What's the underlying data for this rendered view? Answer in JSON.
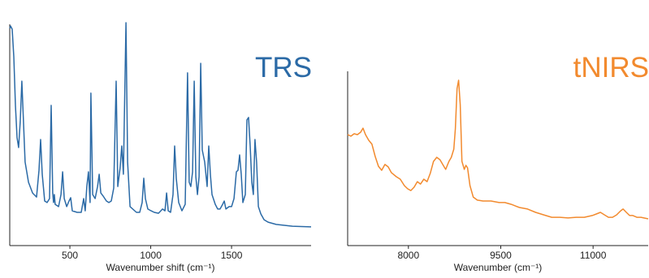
{
  "chart_data": [
    {
      "type": "line",
      "title": "TRS",
      "title_color": "#2b6aa6",
      "color": "#2b6aa6",
      "xlabel": "Wavenumber shift (cm⁻¹)",
      "xlim": [
        128,
        1992
      ],
      "xticks": [
        500,
        1000,
        1500
      ],
      "ylim": [
        0,
        100
      ],
      "x": [
        128,
        133,
        143,
        153,
        163,
        173,
        183,
        193,
        203,
        213,
        223,
        244,
        269,
        294,
        309,
        319,
        329,
        344,
        359,
        374,
        384,
        394,
        399,
        404,
        409,
        430,
        445,
        455,
        465,
        480,
        495,
        505,
        515,
        545,
        570,
        585,
        595,
        605,
        615,
        625,
        630,
        641,
        656,
        671,
        681,
        691,
        706,
        726,
        741,
        756,
        771,
        786,
        796,
        811,
        821,
        831,
        847,
        857,
        872,
        912,
        932,
        947,
        957,
        967,
        982,
        1002,
        1022,
        1048,
        1073,
        1088,
        1098,
        1108,
        1123,
        1138,
        1148,
        1158,
        1173,
        1193,
        1213,
        1228,
        1238,
        1248,
        1259,
        1269,
        1279,
        1289,
        1299,
        1309,
        1319,
        1334,
        1349,
        1359,
        1369,
        1379,
        1399,
        1414,
        1429,
        1445,
        1455,
        1465,
        1485,
        1500,
        1515,
        1530,
        1540,
        1550,
        1560,
        1570,
        1585,
        1595,
        1605,
        1615,
        1625,
        1635,
        1645,
        1655,
        1666,
        1681,
        1701,
        1726,
        1776,
        1877,
        1992
      ],
      "values": [
        97.5,
        98.5,
        97.1,
        84.7,
        62.9,
        48.4,
        44,
        55.6,
        73.8,
        55.6,
        37.5,
        28.4,
        23.6,
        21.8,
        33.8,
        47.6,
        32,
        20,
        19.3,
        21.1,
        62.9,
        23.6,
        19.3,
        22.9,
        18.5,
        17.5,
        22.9,
        33.1,
        21.1,
        17.5,
        20,
        21.5,
        15.6,
        14.9,
        14.9,
        21.1,
        15.6,
        26.5,
        33.1,
        19.3,
        68.4,
        22.9,
        21.1,
        26.5,
        32,
        23.6,
        22.2,
        20,
        19.3,
        20,
        25.8,
        73.8,
        26.5,
        34.9,
        44.7,
        32,
        100,
        37.5,
        17.5,
        14.9,
        14.9,
        19.3,
        30.2,
        21.1,
        16.4,
        15.6,
        14.9,
        14.5,
        16.4,
        15.6,
        23.6,
        15.6,
        14.9,
        22.9,
        44.7,
        30.2,
        19.3,
        15.6,
        18.5,
        77.5,
        28.4,
        26.5,
        33.1,
        73.8,
        30.9,
        22.9,
        30.9,
        81.8,
        42.9,
        37.5,
        26.5,
        44.7,
        32,
        22.9,
        18.5,
        16.4,
        16.4,
        18.5,
        20,
        16.4,
        17.5,
        17.5,
        21.1,
        33.1,
        33.8,
        40.7,
        32,
        19.3,
        22.9,
        56.4,
        57.5,
        44.7,
        28.4,
        22.9,
        47.6,
        37.5,
        17.5,
        14.2,
        11.6,
        10.5,
        9.5,
        8.7,
        8.4
      ]
    },
    {
      "type": "line",
      "title": "tNIRS",
      "title_color": "#f28a2e",
      "color": "#f28a2e",
      "xlabel": "Wavenumber (cm⁻¹)",
      "xlim": [
        7013,
        11895
      ],
      "xticks": [
        8000,
        9500,
        11000
      ],
      "ylim": [
        0,
        78.2
      ],
      "x": [
        7013,
        7066,
        7118,
        7171,
        7224,
        7263,
        7303,
        7355,
        7408,
        7460,
        7513,
        7566,
        7618,
        7671,
        7724,
        7803,
        7868,
        7934,
        7987,
        8039,
        8092,
        8145,
        8197,
        8250,
        8303,
        8355,
        8408,
        8461,
        8513,
        8566,
        8605,
        8632,
        8658,
        8697,
        8737,
        8763,
        8790,
        8816,
        8842,
        8869,
        8908,
        8934,
        8961,
        9000,
        9053,
        9119,
        9211,
        9342,
        9474,
        9566,
        9671,
        9803,
        9935,
        10066,
        10198,
        10329,
        10461,
        10593,
        10724,
        10856,
        10987,
        11053,
        11119,
        11185,
        11250,
        11316,
        11382,
        11448,
        11487,
        11540,
        11593,
        11645,
        11711,
        11777,
        11895
      ],
      "values": [
        49.8,
        49.1,
        50.2,
        49.8,
        50.9,
        52.7,
        49.8,
        47.3,
        45.5,
        40,
        35.6,
        33.8,
        36.4,
        35.3,
        32.7,
        30.9,
        29.8,
        26.9,
        25.5,
        24.7,
        26.2,
        28.7,
        27.6,
        29.8,
        28.7,
        32.4,
        37.8,
        39.6,
        38.5,
        36,
        34.2,
        36,
        37.8,
        39.6,
        43.3,
        52.4,
        70.5,
        74.2,
        63.3,
        37.8,
        34.2,
        36,
        34.9,
        26.9,
        21.8,
        20.4,
        20,
        20,
        19.3,
        19.3,
        18.5,
        17.1,
        16.4,
        14.9,
        13.8,
        12.7,
        12.7,
        12.4,
        12.7,
        12.7,
        13.5,
        14.2,
        14.9,
        13.8,
        12.7,
        12.7,
        13.8,
        15.6,
        16.4,
        14.9,
        13.5,
        13.5,
        12.7,
        12.7,
        12
      ]
    }
  ]
}
